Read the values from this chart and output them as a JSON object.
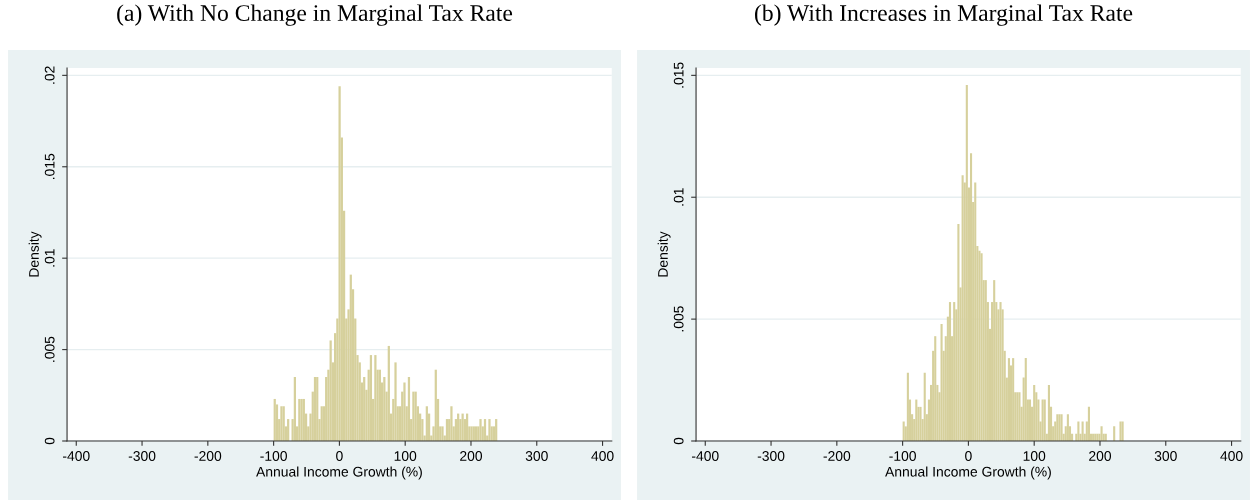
{
  "chart_data": [
    {
      "type": "histogram",
      "title": "(a) With No Change in Marginal Tax Rate",
      "xlabel": "Annual Income Growth (%)",
      "ylabel": "Density",
      "color": "#d6d09c",
      "grid": "y",
      "xlim": [
        -414,
        414
      ],
      "ylim": [
        0,
        0.0204
      ],
      "xticks": [
        -400,
        -300,
        -200,
        -100,
        0,
        100,
        200,
        300,
        400
      ],
      "yticks": [
        0,
        {
          "value": 0.005,
          "label": ".005"
        },
        {
          "value": 0.01,
          "label": ".01"
        },
        {
          "value": 0.015,
          "label": ".015"
        },
        {
          "value": 0.02,
          "label": ".02"
        }
      ],
      "bins": [
        -100,
        -96.6,
        -93.2,
        -89.8,
        -86.4,
        -83,
        -79.6,
        -76.2,
        -72.8,
        -69.4,
        -66,
        -62.6,
        -59.2,
        -55.8,
        -52.4,
        -49,
        -45.6,
        -42.2,
        -38.8,
        -35.4,
        -32,
        -28.6,
        -25.2,
        -21.8,
        -18.4,
        -15,
        -11.6,
        -8.2,
        -4.8,
        -1.4,
        2,
        5.4,
        8.8,
        12.2,
        15.6,
        19,
        22.4,
        25.8,
        29.2,
        32.6,
        36,
        39.4,
        42.8,
        46.2,
        49.6,
        53,
        56.4,
        59.8,
        63.2,
        66.6,
        70,
        73.4,
        76.8,
        80.2,
        83.6,
        87,
        90.4,
        93.8,
        97.2,
        100.6,
        104,
        107.4,
        110.8,
        114.2,
        117.6,
        121,
        124.4,
        127.8,
        131.2,
        134.6,
        138,
        141.4,
        144.8,
        148.2,
        151.6,
        155,
        158.4,
        161.8,
        165.2,
        168.6,
        172,
        175.4,
        178.8,
        182.2,
        185.6,
        189,
        192.4,
        195.8,
        199.2,
        202.6,
        206,
        209.4,
        212.8,
        216.2,
        219.6,
        223,
        226.4,
        229.8,
        233.2,
        236.6,
        240
      ],
      "values": [
        0.0023,
        0.002,
        0.0012,
        0.0019,
        0.0019,
        0.0008,
        0.0012,
        0,
        0.0012,
        0.0035,
        0.0008,
        0.0023,
        0.0023,
        0.0023,
        0.0015,
        0.0008,
        0.0015,
        0.0027,
        0.0035,
        0.0035,
        0.0012,
        0.0019,
        0.0019,
        0.0035,
        0.0039,
        0.0055,
        0.0043,
        0.0059,
        0.0067,
        0.0194,
        0.0166,
        0.0126,
        0.0067,
        0.0072,
        0.0091,
        0.0083,
        0.0067,
        0.0047,
        0.0043,
        0.0032,
        0.0035,
        0.0028,
        0.0039,
        0.0047,
        0.0023,
        0.0047,
        0.0039,
        0.0039,
        0.0032,
        0.0035,
        0.0027,
        0.0052,
        0.0015,
        0.0023,
        0.0043,
        0.0019,
        0.0019,
        0.0027,
        0.0032,
        0.0019,
        0.0035,
        0.0012,
        0.0027,
        0.0027,
        0.0019,
        0.0015,
        0.0012,
        0.0003,
        0.0019,
        0.0015,
        0.0003,
        0.0008,
        0.0039,
        0.0023,
        0.0008,
        0.0008,
        0.0003,
        0.0012,
        0.0012,
        0.0019,
        0.0008,
        0.0012,
        0.0015,
        0.0012,
        0.0015,
        0.0012,
        0.0015,
        0.0008,
        0.0008,
        0.0008,
        0.0008,
        0.0008,
        0.0012,
        0.0008,
        0.0012,
        0.0003,
        0.0012,
        0.0008,
        0.0008,
        0.0012
      ]
    },
    {
      "type": "histogram",
      "title": "(b) With Increases in Marginal Tax Rate",
      "xlabel": "Annual Income Growth (%)",
      "ylabel": "Density",
      "color": "#d6d09c",
      "grid": "y",
      "xlim": [
        -414,
        414
      ],
      "ylim": [
        0,
        0.0153
      ],
      "xticks": [
        -400,
        -300,
        -200,
        -100,
        0,
        100,
        200,
        300,
        400
      ],
      "yticks": [
        0,
        {
          "value": 0.005,
          "label": ".005"
        },
        {
          "value": 0.01,
          "label": ".01"
        },
        {
          "value": 0.015,
          "label": ".015"
        }
      ],
      "bins": [
        -100,
        -96.8,
        -93.6,
        -90.4,
        -87.2,
        -84,
        -80.8,
        -77.6,
        -74.4,
        -71.2,
        -68,
        -64.8,
        -61.6,
        -58.4,
        -55.2,
        -52,
        -48.8,
        -45.6,
        -42.4,
        -39.2,
        -36,
        -32.8,
        -29.6,
        -26.4,
        -23.2,
        -20,
        -16.8,
        -13.6,
        -10.4,
        -7.2,
        -4,
        -0.8,
        2.4,
        5.6,
        8.8,
        12,
        15.2,
        18.4,
        21.6,
        24.8,
        28,
        31.2,
        34.4,
        37.6,
        40.8,
        44,
        47.2,
        50.4,
        53.6,
        56.8,
        60,
        63.2,
        66.4,
        69.6,
        72.8,
        76,
        79.2,
        82.4,
        85.6,
        88.8,
        92,
        95.2,
        98.4,
        101.6,
        104.8,
        108,
        111.2,
        114.4,
        117.6,
        120.8,
        124,
        127.2,
        130.4,
        133.6,
        136.8,
        140,
        143.2,
        146.4,
        149.6,
        152.8,
        156,
        159.2,
        162.4,
        165.6,
        168.8,
        172,
        175.2,
        178.4,
        181.6,
        184.8,
        188,
        191.2,
        194.4,
        197.6,
        200.8,
        204,
        207.2,
        210.4,
        213.6,
        216.8,
        220,
        223.2,
        226.4,
        229.6,
        232.8,
        236
      ],
      "values": [
        0.0008,
        0.0006,
        0.0028,
        0.0017,
        0.0011,
        0.0009,
        0.0017,
        0.0014,
        0.0014,
        0.0009,
        0.0028,
        0.0011,
        0.0017,
        0.0023,
        0.0037,
        0.0043,
        0.0023,
        0.002,
        0.0048,
        0.0037,
        0.0043,
        0.0051,
        0.0057,
        0.0043,
        0.0057,
        0.0054,
        0.0089,
        0.0063,
        0.0109,
        0.0106,
        0.0146,
        0.0104,
        0.0118,
        0.0098,
        0.0106,
        0.008,
        0.0078,
        0.0077,
        0.0066,
        0.0066,
        0.0057,
        0.0046,
        0.0057,
        0.0066,
        0.0057,
        0.0054,
        0.0057,
        0.0054,
        0.0037,
        0.0026,
        0.0034,
        0.0031,
        0.0034,
        0.002,
        0.002,
        0.002,
        0.0014,
        0.0026,
        0.0034,
        0.0017,
        0.0017,
        0.0014,
        0.0023,
        0.002,
        0.0017,
        0.0008,
        0.0017,
        0.0017,
        0.0003,
        0.0023,
        0.0014,
        0.0006,
        0.0008,
        0.0011,
        0.0011,
        0.0011,
        0.0003,
        0.0006,
        0.0011,
        0.0006,
        0.0003,
        0,
        0.0003,
        0.0008,
        0.0003,
        0.0008,
        0.0003,
        0.0008,
        0.0014,
        0.0003,
        0.0003,
        0.0003,
        0.0003,
        0.0003,
        0.0006,
        0.0003,
        0.0003,
        0,
        0,
        0,
        0.0006,
        0,
        0,
        0.0008,
        0.0008
      ]
    }
  ]
}
